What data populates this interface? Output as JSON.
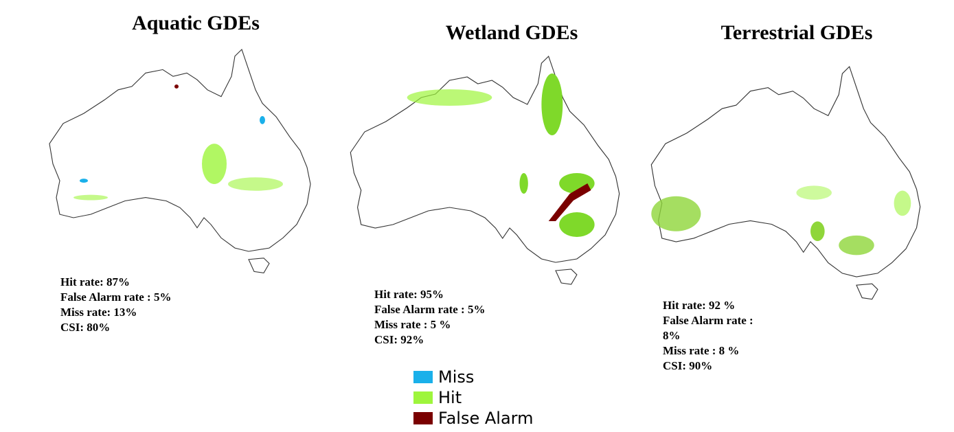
{
  "panels": [
    {
      "title": "Aquatic GDEs",
      "stats": [
        "Hit rate: 87%",
        "False Alarm rate : 5%",
        "Miss rate: 13%",
        "CSI: 80%"
      ]
    },
    {
      "title": "Wetland GDEs",
      "stats": [
        "Hit rate: 95%",
        "False Alarm rate : 5%",
        "Miss rate : 5 %",
        "CSI: 92%"
      ]
    },
    {
      "title": "Terrestrial GDEs",
      "stats": [
        "Hit rate: 92 %",
        "False Alarm rate :",
        "8%",
        "Miss rate : 8 %",
        "CSI: 90%"
      ]
    }
  ],
  "legend": [
    {
      "label": "Miss",
      "color": "#1ab0ea"
    },
    {
      "label": "Hit",
      "color": "#9ef53c"
    },
    {
      "label": "False Alarm",
      "color": "#7a0000"
    }
  ]
}
